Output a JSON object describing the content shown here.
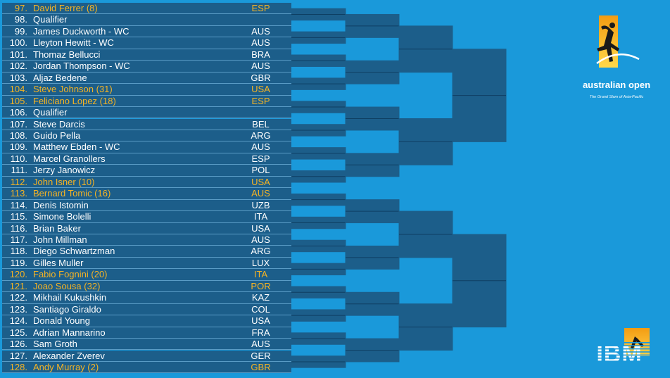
{
  "draw": [
    {
      "num": "97.",
      "name": "David Ferrer (8)",
      "country": "ESP",
      "seeded": true
    },
    {
      "num": "98.",
      "name": "Qualifier",
      "country": "",
      "seeded": false
    },
    {
      "num": "99.",
      "name": "James Duckworth - WC",
      "country": "AUS",
      "seeded": false
    },
    {
      "num": "100.",
      "name": "Lleyton Hewitt - WC",
      "country": "AUS",
      "seeded": false
    },
    {
      "num": "101.",
      "name": "Thomaz Bellucci",
      "country": "BRA",
      "seeded": false
    },
    {
      "num": "102.",
      "name": "Jordan Thompson - WC",
      "country": "AUS",
      "seeded": false
    },
    {
      "num": "103.",
      "name": "Aljaz Bedene",
      "country": "GBR",
      "seeded": false
    },
    {
      "num": "104.",
      "name": "Steve Johnson (31)",
      "country": "USA",
      "seeded": true
    },
    {
      "num": "105.",
      "name": "Feliciano Lopez (18)",
      "country": "ESP",
      "seeded": true
    },
    {
      "num": "106.",
      "name": "Qualifier",
      "country": "",
      "seeded": false
    },
    {
      "num": "107.",
      "name": "Steve Darcis",
      "country": "BEL",
      "seeded": false
    },
    {
      "num": "108.",
      "name": "Guido Pella",
      "country": "ARG",
      "seeded": false
    },
    {
      "num": "109.",
      "name": "Matthew Ebden - WC",
      "country": "AUS",
      "seeded": false
    },
    {
      "num": "110.",
      "name": "Marcel Granollers",
      "country": "ESP",
      "seeded": false
    },
    {
      "num": "111.",
      "name": "Jerzy Janowicz",
      "country": "POL",
      "seeded": false
    },
    {
      "num": "112.",
      "name": "John Isner (10)",
      "country": "USA",
      "seeded": true
    },
    {
      "num": "113.",
      "name": "Bernard Tomic (16)",
      "country": "AUS",
      "seeded": true
    },
    {
      "num": "114.",
      "name": "Denis Istomin",
      "country": "UZB",
      "seeded": false
    },
    {
      "num": "115.",
      "name": "Simone Bolelli",
      "country": "ITA",
      "seeded": false
    },
    {
      "num": "116.",
      "name": "Brian Baker",
      "country": "USA",
      "seeded": false
    },
    {
      "num": "117.",
      "name": "John Millman",
      "country": "AUS",
      "seeded": false
    },
    {
      "num": "118.",
      "name": "Diego Schwartzman",
      "country": "ARG",
      "seeded": false
    },
    {
      "num": "119.",
      "name": "Gilles Muller",
      "country": "LUX",
      "seeded": false
    },
    {
      "num": "120.",
      "name": "Fabio Fognini (20)",
      "country": "ITA",
      "seeded": true
    },
    {
      "num": "121.",
      "name": "Joao Sousa (32)",
      "country": "POR",
      "seeded": true
    },
    {
      "num": "122.",
      "name": "Mikhail Kukushkin",
      "country": "KAZ",
      "seeded": false
    },
    {
      "num": "123.",
      "name": "Santiago Giraldo",
      "country": "COL",
      "seeded": false
    },
    {
      "num": "124.",
      "name": "Donald Young",
      "country": "USA",
      "seeded": false
    },
    {
      "num": "125.",
      "name": "Adrian Mannarino",
      "country": "FRA",
      "seeded": false
    },
    {
      "num": "126.",
      "name": "Sam Groth",
      "country": "AUS",
      "seeded": false
    },
    {
      "num": "127.",
      "name": "Alexander Zverev",
      "country": "GER",
      "seeded": false
    },
    {
      "num": "128.",
      "name": "Andy Murray (2)",
      "country": "GBR",
      "seeded": true
    }
  ],
  "bracket": {
    "rounds": [
      16,
      8,
      4,
      2,
      1
    ]
  },
  "logo": {
    "name": "australian open",
    "tagline": "The Grand Slam of Asia-Pacific",
    "sponsor": "IBM"
  },
  "colors": {
    "background": "#1a99da",
    "panel": "#1c5e8a",
    "seeded_text": "#f5b324",
    "text": "#ffffff"
  }
}
